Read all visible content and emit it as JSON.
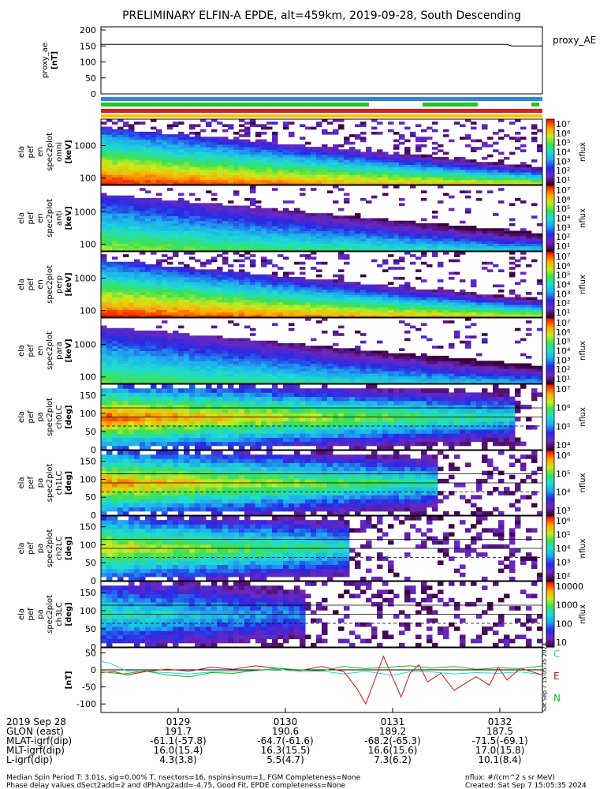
{
  "title": "PRELIMINARY ELFIN-A EPDE, alt=459km, 2019-09-28, South Descending",
  "colors": {
    "bar1": "#2f86d6",
    "bar2": "#22c522",
    "bar3": "#e01b1b",
    "bar4": "#f2c200",
    "line_C": "#22d6e6",
    "line_E": "#d01010",
    "line_N": "#12b812"
  },
  "chart_data": [
    {
      "type": "line",
      "name": "proxy_ae_panel",
      "ylabel_lines": [
        "proxy_ae",
        "[nT]"
      ],
      "yticks": [
        "200",
        "150",
        "100",
        "50",
        "0"
      ],
      "ylim": [
        0,
        200
      ],
      "legend": "proxy_AE",
      "series": [
        {
          "name": "proxy_AE",
          "x": [
            0,
            0.92,
            0.93,
            1.0
          ],
          "y": [
            155,
            155,
            150,
            150
          ]
        }
      ]
    },
    {
      "type": "heatmap",
      "name": "energy_spectrum_omni",
      "ylabel_lines": [
        "ela",
        "pef",
        "en",
        "spec2plot",
        "omni",
        "[keV]"
      ],
      "yticks": [
        "1000",
        "100"
      ],
      "ylim": [
        63,
        6500
      ],
      "ylog": true,
      "colorbar_label": "nflux",
      "colorbar_ticks": [
        "10⁷",
        "10⁶",
        "10⁵",
        "10⁴",
        "10³",
        "10²",
        "10¹"
      ]
    },
    {
      "type": "heatmap",
      "name": "energy_spectrum_anti",
      "ylabel_lines": [
        "ela",
        "pef",
        "en",
        "spec2plot",
        "anti",
        "[keV]"
      ],
      "yticks": [
        "1000",
        "100"
      ],
      "ylim": [
        63,
        6500
      ],
      "ylog": true,
      "colorbar_label": "nflux",
      "colorbar_ticks": [
        "10⁷",
        "10⁶",
        "10⁵",
        "10⁴",
        "10³",
        "10²",
        "10¹"
      ]
    },
    {
      "type": "heatmap",
      "name": "energy_spectrum_perp",
      "ylabel_lines": [
        "ela",
        "pef",
        "en",
        "spec2plot",
        "perp",
        "[keV]"
      ],
      "yticks": [
        "1000",
        "100"
      ],
      "ylim": [
        63,
        6500
      ],
      "ylog": true,
      "colorbar_label": "nflux",
      "colorbar_ticks": [
        "10⁷",
        "10⁶",
        "10⁵",
        "10⁴",
        "10³",
        "10²",
        "10¹"
      ]
    },
    {
      "type": "heatmap",
      "name": "energy_spectrum_para",
      "ylabel_lines": [
        "ela",
        "pef",
        "en",
        "spec2plot",
        "para",
        "[keV]"
      ],
      "yticks": [
        "1000",
        "100"
      ],
      "ylim": [
        63,
        6500
      ],
      "ylog": true,
      "colorbar_label": "nflux",
      "colorbar_ticks": [
        "10⁷",
        "10⁶",
        "10⁵",
        "10⁴",
        "10³",
        "10²",
        "10¹"
      ]
    },
    {
      "type": "heatmap",
      "name": "pitch_angle_ch0LC",
      "ylabel_lines": [
        "ela",
        "pef",
        "pa",
        "spec2plot",
        "ch0LC",
        "[deg]"
      ],
      "yticks": [
        "150",
        "100",
        "50",
        "0"
      ],
      "ylim": [
        0,
        180
      ],
      "colorbar_label": "nflux",
      "colorbar_ticks": [
        "10⁷",
        "10⁶",
        "10⁵",
        "10⁴"
      ]
    },
    {
      "type": "heatmap",
      "name": "pitch_angle_ch1LC",
      "ylabel_lines": [
        "ela",
        "pef",
        "pa",
        "spec2plot",
        "ch1LC",
        "[deg]"
      ],
      "yticks": [
        "150",
        "100",
        "50",
        "0"
      ],
      "ylim": [
        0,
        180
      ],
      "colorbar_label": "nflux",
      "colorbar_ticks": [
        "10⁶",
        "10⁵",
        "10⁴",
        "10³"
      ]
    },
    {
      "type": "heatmap",
      "name": "pitch_angle_ch2LC",
      "ylabel_lines": [
        "ela",
        "pef",
        "pa",
        "spec2plot",
        "ch2LC",
        "[deg]"
      ],
      "yticks": [
        "150",
        "100",
        "50",
        "0"
      ],
      "ylim": [
        0,
        180
      ],
      "colorbar_label": "nflux",
      "colorbar_ticks": [
        "10⁶",
        "10⁵",
        "10⁴",
        "10³",
        "10²"
      ]
    },
    {
      "type": "heatmap",
      "name": "pitch_angle_ch3LC",
      "ylabel_lines": [
        "ela",
        "pef",
        "pa",
        "spec2plot",
        "ch3LC",
        "[deg]"
      ],
      "yticks": [
        "150",
        "100",
        "50",
        "0"
      ],
      "ylim": [
        0,
        180
      ],
      "colorbar_label": "nflux",
      "colorbar_ticks": [
        "10000",
        "1000",
        "100",
        "10"
      ]
    },
    {
      "type": "line",
      "name": "magnetic_field_panel",
      "ylabel_lines": [
        "[nT]"
      ],
      "yticks": [
        "50",
        "0",
        "-50",
        "-100"
      ],
      "ylim": [
        -125,
        65
      ],
      "legend_labels": [
        "C",
        "E",
        "N"
      ],
      "series": [
        {
          "name": "C",
          "x": [
            0,
            0.02,
            0.04,
            0.06,
            0.1,
            0.15,
            0.2,
            0.25,
            0.3,
            0.35,
            0.4,
            0.45,
            0.5,
            0.55,
            0.6,
            0.63,
            0.66,
            0.7,
            0.75,
            0.8,
            0.85,
            0.9,
            0.95,
            1.0
          ],
          "y": [
            25,
            20,
            8,
            -4,
            -5,
            -8,
            -12,
            -6,
            -4,
            -2,
            2,
            -5,
            -3,
            -12,
            -4,
            -10,
            -16,
            -5,
            -6,
            -12,
            -8,
            -10,
            -6,
            -14
          ]
        },
        {
          "name": "E",
          "x": [
            0,
            0.03,
            0.06,
            0.1,
            0.15,
            0.2,
            0.25,
            0.3,
            0.35,
            0.4,
            0.45,
            0.5,
            0.55,
            0.58,
            0.6,
            0.62,
            0.64,
            0.66,
            0.68,
            0.7,
            0.72,
            0.74,
            0.77,
            0.8,
            0.85,
            0.88,
            0.9,
            0.92,
            0.95,
            1.0
          ],
          "y": [
            -8,
            -5,
            -15,
            -5,
            2,
            -4,
            8,
            2,
            12,
            5,
            -2,
            10,
            -5,
            -55,
            -100,
            -30,
            40,
            -20,
            -80,
            -10,
            15,
            -35,
            -10,
            -60,
            -20,
            -45,
            8,
            -30,
            5,
            -15
          ]
        },
        {
          "name": "N",
          "x": [
            0,
            0.05,
            0.1,
            0.15,
            0.2,
            0.25,
            0.3,
            0.35,
            0.4,
            0.45,
            0.5,
            0.55,
            0.6,
            0.65,
            0.7,
            0.75,
            0.8,
            0.85,
            0.9,
            0.95,
            1.0
          ],
          "y": [
            -5,
            -12,
            -3,
            -15,
            -20,
            -8,
            -10,
            -2,
            5,
            0,
            -3,
            10,
            4,
            8,
            12,
            5,
            10,
            2,
            6,
            4,
            12
          ]
        }
      ]
    }
  ],
  "xaxis": {
    "tick_labels": [
      "0129",
      "0130",
      "0131",
      "0132"
    ],
    "rows": [
      {
        "label": "2019 Sep 28",
        "values": [
          "",
          "",
          "",
          ""
        ]
      },
      {
        "label": "GLON (east)",
        "values": [
          "191.7",
          "190.6",
          "189.2",
          "187.5"
        ]
      },
      {
        "label": "MLAT-igrf(dip)",
        "values": [
          "-61.1(-57.8)",
          "-64.7(-61.6)",
          "-68.2(-65.3)",
          "-71.5(-69.1)"
        ]
      },
      {
        "label": "MLT-igrf(dip)",
        "values": [
          "16.0(15.4)",
          "16.3(15.5)",
          "16.6(15.6)",
          "17.0(15.8)"
        ]
      },
      {
        "label": "L-igrf(dip)",
        "values": [
          "4.3(3.8)",
          "5.5(4.7)",
          "7.3(6.2)",
          "10.1(8.4)"
        ]
      }
    ]
  },
  "side_stamp": "Sat Sep  7 15:05:35 2024",
  "footer": {
    "line1": "Median Spin Period T: 3.01s, sig=0.00% T, nsectors=16, nspinsinsum=1, FGM Completeness=None",
    "line2": "Phase delay values dSect2add=2 and dPhAng2add=-4.75, Good Fit, EPDE completeness=None",
    "right1": "nflux: #/(cm^2 s sr MeV)",
    "right2": "Created: Sat Sep  7 15:05:35 2024"
  }
}
